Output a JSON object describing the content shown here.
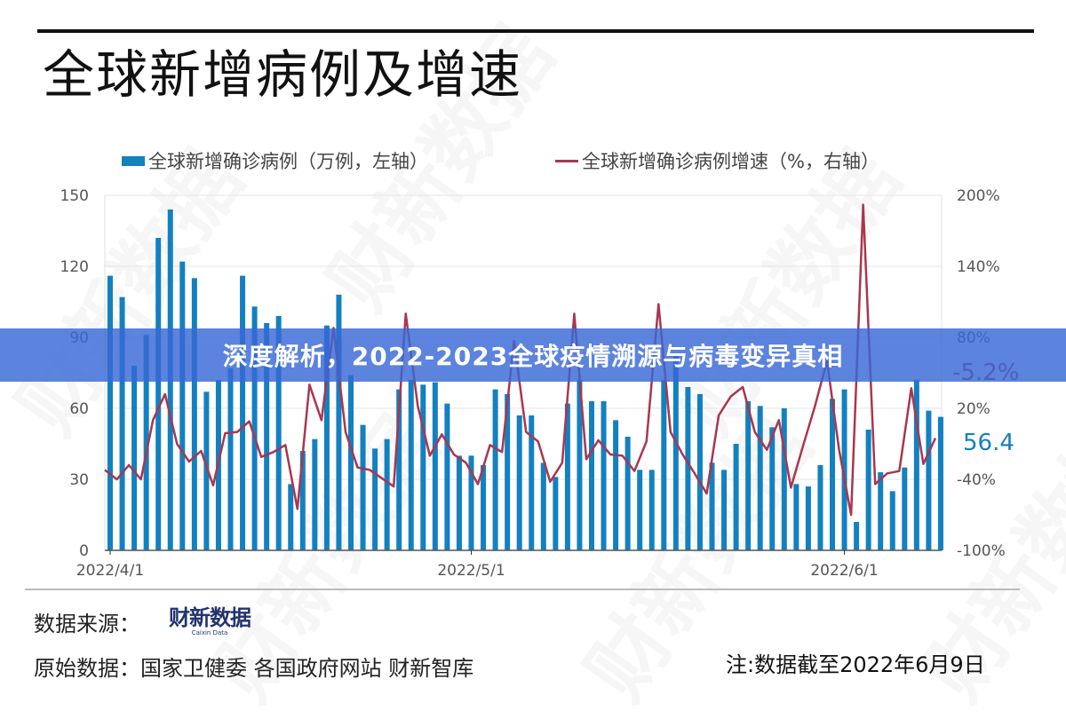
{
  "page": {
    "title": "全球新增病例及增速"
  },
  "banner": {
    "text": "深度解析，2022-2023全球疫情溯源与病毒变异真相"
  },
  "legend": {
    "bar_label": "全球新增确诊病例（万例，左轴）",
    "line_label": "全球新增确诊病例增速（%，右轴）"
  },
  "callouts": {
    "latest_rate": "-5.2%",
    "latest_cases": "56.4"
  },
  "footer": {
    "source_label": "数据来源：",
    "logo_cn": "财新数据",
    "logo_en": "Caixin Data",
    "raw_data": "原始数据：国家卫健委 各国政府网站 财新智库",
    "note": "注:数据截至2022年6月9日"
  },
  "colors": {
    "bar": "#1380c0",
    "line": "#a8374f",
    "banner": "#3868d6",
    "grid": "#e6e6e6"
  },
  "watermark": "财新数据",
  "chart_data": {
    "type": "bar+line",
    "title": "全球新增病例及增速",
    "x_tick_labels": [
      "2022/4/1",
      "2022/5/1",
      "2022/6/1"
    ],
    "x_tick_index": [
      0,
      30,
      61
    ],
    "y_left": {
      "label": "万例",
      "ticks": [
        0,
        30,
        60,
        90,
        120,
        150
      ],
      "range": [
        0,
        150
      ]
    },
    "y_right": {
      "label": "%",
      "ticks": [
        "-100%",
        "-40%",
        "20%",
        "80%",
        "140%",
        "200%"
      ],
      "range": [
        -100,
        200
      ]
    },
    "grid": true,
    "legend_position": "top",
    "series": [
      {
        "name": "全球新增确诊病例（万例，左轴）",
        "type": "bar",
        "axis": "left",
        "values": [
          116,
          107,
          78,
          91,
          132,
          144,
          122,
          115,
          67,
          72,
          77,
          116,
          103,
          96,
          99,
          28,
          42,
          47,
          95,
          108,
          74,
          53,
          43,
          47,
          68,
          72,
          70,
          71,
          62,
          40,
          40,
          36,
          68,
          66,
          57,
          57,
          37,
          31,
          62,
          72,
          63,
          63,
          55,
          48,
          34,
          34,
          72,
          82,
          69,
          66,
          37,
          34,
          45,
          63,
          61,
          52,
          60,
          28,
          27,
          36,
          64,
          68,
          12,
          51,
          33,
          25,
          35,
          72,
          59,
          56.4
        ]
      },
      {
        "name": "全球新增确诊病例增速（%，右轴）",
        "type": "line",
        "axis": "right",
        "values": [
          -32,
          -40,
          -28,
          -40,
          10,
          32,
          -10,
          -25,
          -16,
          -45,
          -1,
          0,
          9,
          -21,
          -17,
          -11,
          -65,
          40,
          10,
          88,
          0,
          -30,
          -32,
          -39,
          -46,
          100,
          22,
          -20,
          -2,
          -19,
          -26,
          -44,
          -11,
          -17,
          77,
          0,
          -8,
          -42,
          -26,
          100,
          -23,
          -7,
          -19,
          -20,
          -33,
          -8,
          108,
          0,
          -19,
          -35,
          -52,
          14,
          30,
          38,
          0,
          -15,
          10,
          -47,
          -12,
          22,
          60,
          -15,
          -70,
          192,
          -44,
          -35,
          -33,
          37,
          -27,
          -5.2
        ]
      }
    ]
  }
}
